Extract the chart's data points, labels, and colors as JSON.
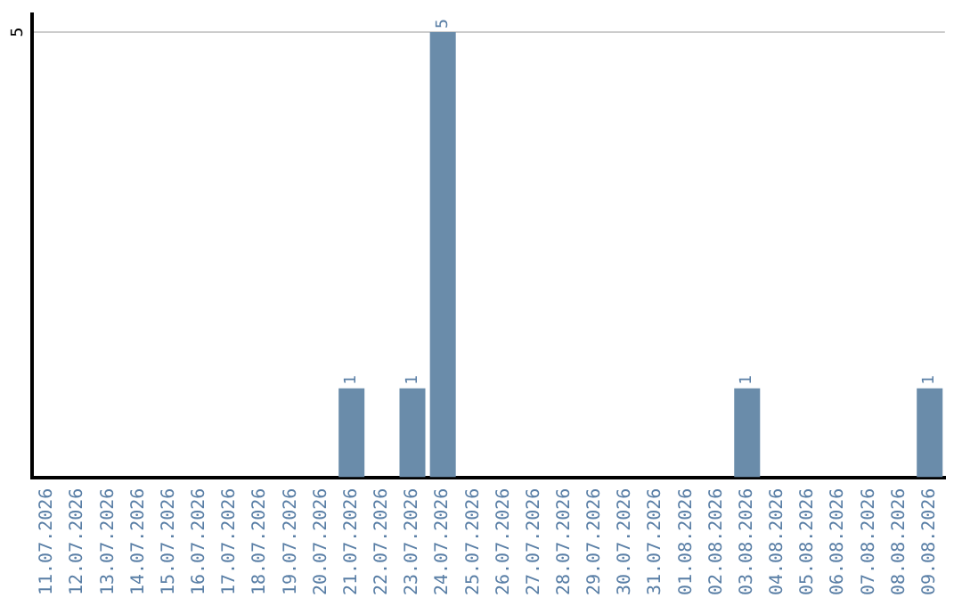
{
  "chart_data": {
    "type": "bar",
    "categories": [
      "11.07.2026",
      "12.07.2026",
      "13.07.2026",
      "14.07.2026",
      "15.07.2026",
      "16.07.2026",
      "17.07.2026",
      "18.07.2026",
      "19.07.2026",
      "20.07.2026",
      "21.07.2026",
      "22.07.2026",
      "23.07.2026",
      "24.07.2026",
      "25.07.2026",
      "26.07.2026",
      "27.07.2026",
      "28.07.2026",
      "29.07.2026",
      "30.07.2026",
      "31.07.2026",
      "01.08.2026",
      "02.08.2026",
      "03.08.2026",
      "04.08.2026",
      "05.08.2026",
      "06.08.2026",
      "07.08.2026",
      "08.08.2026",
      "09.08.2026"
    ],
    "values": [
      0,
      0,
      0,
      0,
      0,
      0,
      0,
      0,
      0,
      0,
      1,
      0,
      1,
      5,
      0,
      0,
      0,
      0,
      0,
      0,
      0,
      0,
      0,
      1,
      0,
      0,
      0,
      0,
      0,
      1
    ],
    "value_labels": [
      null,
      null,
      null,
      null,
      null,
      null,
      null,
      null,
      null,
      null,
      "1",
      null,
      "1",
      "5",
      null,
      null,
      null,
      null,
      null,
      null,
      null,
      null,
      null,
      "1",
      null,
      null,
      null,
      null,
      null,
      "1"
    ],
    "color": "#6a8caa",
    "ylim": [
      0,
      5.2
    ],
    "yticks": [
      5
    ],
    "grid": "y",
    "legend": false
  }
}
